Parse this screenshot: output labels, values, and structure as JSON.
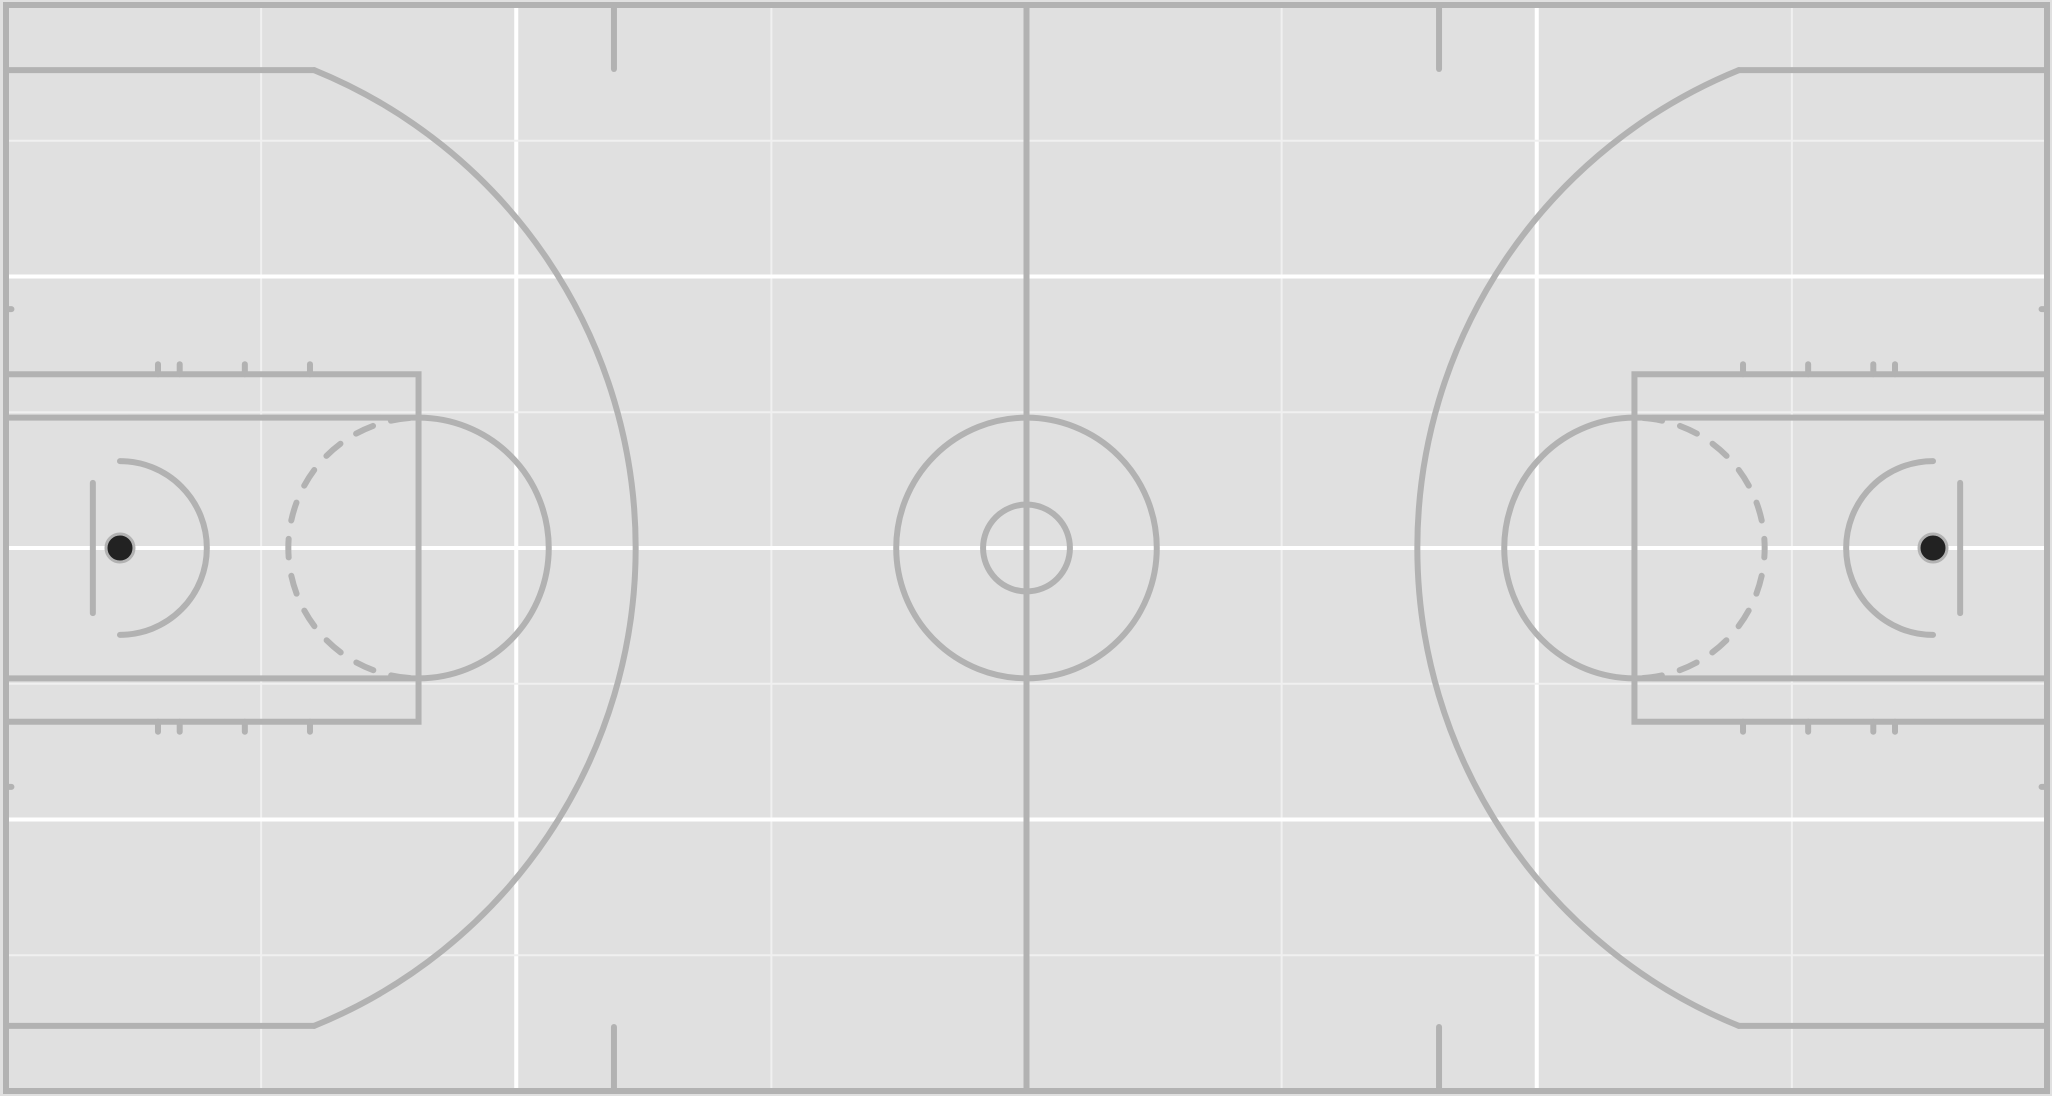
{
  "court": {
    "units": "ft",
    "length": 94,
    "width": 50,
    "three_point_radius": 23.75,
    "three_point_corner_offset": 3,
    "center_circle_outer_radius": 6,
    "center_circle_inner_radius": 2,
    "lane_width": 12,
    "outer_box_width": 16,
    "free_throw_distance": 19,
    "free_throw_circle_radius": 6,
    "backboard_offset": 4,
    "backboard_half_width": 3,
    "hoop_offset": 5.25,
    "restricted_area_radius": 4,
    "coaching_box_distance": 28,
    "grid_step_x": 11.75,
    "grid_step_y": 6.25,
    "free_throw_dash_count": 11
  },
  "colors": {
    "floor": "#e0e0e0",
    "lines": "#b2b2b2",
    "grid_major": "#ffffff",
    "grid_minor": "#f0f0f0",
    "hoop_fill": "#222222",
    "hoop_stroke": "#b2b2b2"
  }
}
